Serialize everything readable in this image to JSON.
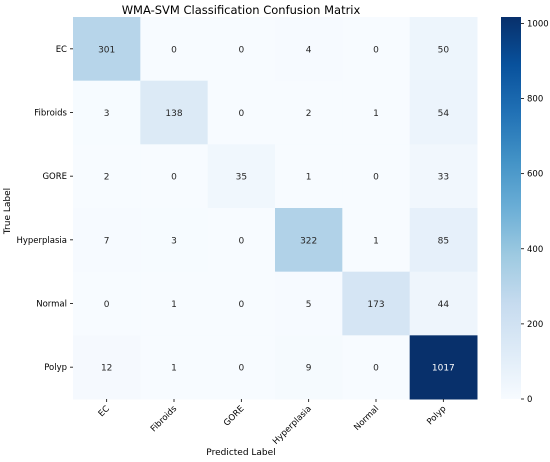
{
  "chart_data": {
    "type": "heatmap",
    "title": "WMA-SVM Classification Confusion Matrix",
    "xlabel": "Predicted Label",
    "ylabel": "True Label",
    "x_categories": [
      "EC",
      "Fibroids",
      "GORE",
      "Hyperplasia",
      "Normal",
      "Polyp"
    ],
    "y_categories": [
      "EC",
      "Fibroids",
      "GORE",
      "Hyperplasia",
      "Normal",
      "Polyp"
    ],
    "values": [
      [
        301,
        0,
        0,
        4,
        0,
        50
      ],
      [
        3,
        138,
        0,
        2,
        1,
        54
      ],
      [
        2,
        0,
        35,
        1,
        0,
        33
      ],
      [
        7,
        3,
        0,
        322,
        1,
        85
      ],
      [
        0,
        1,
        0,
        5,
        173,
        44
      ],
      [
        12,
        1,
        0,
        9,
        0,
        1017
      ]
    ],
    "colorbar": {
      "colormap": "Blues",
      "min": 0,
      "max": 1017,
      "ticks": [
        0,
        200,
        400,
        600,
        800,
        1000
      ]
    }
  }
}
